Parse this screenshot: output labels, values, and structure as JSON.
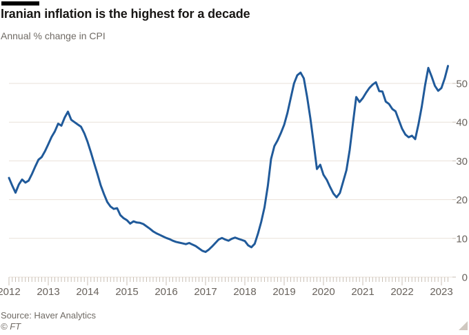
{
  "header": {
    "title": "Iranian inflation is the highest for a decade",
    "subtitle": "Annual % change in CPI"
  },
  "footer": {
    "source": "Source: Haver Analytics",
    "copyright": "© FT"
  },
  "chart_data": {
    "type": "line",
    "title": "Iranian inflation is the highest for a decade",
    "subtitle": "Annual % change in CPI",
    "series_name": "Annual % change in CPI (Iran)",
    "frequency": "monthly",
    "x_start": "2012-01",
    "x_end": "2023-03",
    "x_tick_years": [
      "2012",
      "2013",
      "2014",
      "2015",
      "2016",
      "2017",
      "2018",
      "2019",
      "2020",
      "2021",
      "2022",
      "2023"
    ],
    "y_ticks": [
      0,
      10,
      20,
      30,
      40,
      50
    ],
    "ylim": [
      0,
      56
    ],
    "grid": "horizontal-only",
    "legend": "none",
    "y_axis_side": "right",
    "colors": {
      "line": "#205a9a",
      "grid": "#e9e1d8",
      "tick": "#c9bfb4",
      "axis_label": "#68625c",
      "title": "#181614",
      "subtitle": "#6f6a64"
    },
    "values": [
      25.6,
      23.6,
      21.8,
      23.9,
      25.2,
      24.4,
      24.9,
      26.6,
      28.5,
      30.3,
      31.0,
      32.5,
      34.3,
      36.2,
      37.6,
      39.6,
      39.1,
      41.2,
      42.7,
      40.6,
      40.0,
      39.4,
      38.8,
      37.1,
      34.9,
      32.2,
      29.4,
      26.6,
      23.7,
      21.4,
      19.4,
      18.2,
      17.6,
      17.8,
      16.0,
      15.2,
      14.7,
      13.8,
      14.4,
      14.1,
      14.0,
      13.7,
      13.1,
      12.5,
      11.8,
      11.3,
      10.9,
      10.5,
      10.1,
      9.8,
      9.4,
      9.1,
      8.9,
      8.7,
      8.5,
      8.8,
      8.4,
      8.0,
      7.4,
      6.8,
      6.5,
      7.1,
      7.9,
      8.8,
      9.7,
      10.1,
      9.7,
      9.4,
      9.9,
      10.2,
      9.9,
      9.6,
      9.3,
      8.2,
      7.7,
      8.6,
      11.2,
      14.3,
      18.0,
      23.5,
      30.5,
      33.8,
      35.3,
      37.2,
      39.3,
      42.4,
      46.2,
      50.0,
      52.1,
      52.8,
      51.3,
      46.5,
      41.0,
      34.5,
      27.9,
      29.0,
      26.4,
      25.1,
      23.3,
      21.6,
      20.6,
      21.7,
      24.6,
      27.6,
      32.8,
      39.8,
      46.5,
      45.2,
      46.2,
      47.6,
      48.8,
      49.7,
      50.3,
      48.0,
      47.9,
      45.3,
      44.7,
      43.4,
      42.8,
      40.5,
      38.3,
      36.8,
      36.1,
      36.5,
      35.6,
      39.5,
      44.0,
      49.5,
      54.0,
      51.8,
      49.4,
      48.1,
      48.8,
      51.3,
      54.5
    ]
  }
}
